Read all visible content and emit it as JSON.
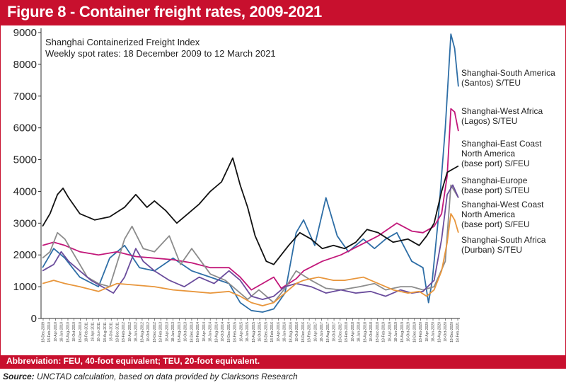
{
  "figure": {
    "title": "Figure 8 - Container freight rates, 2009-2021",
    "abbreviation": "Abbreviation: FEU, 40-foot equivalent; TEU, 20-foot equivalent.",
    "source_label": "Source:",
    "source_text": "UNCTAD calculation, based on data provided by Clarksons Research",
    "accent_color": "#c8102e"
  },
  "chart_data": {
    "type": "line",
    "subtitle_lines": [
      "Shanghai Containerized Freight Index",
      "Weekly spot rates: 18 December 2009 to 12 March 2021"
    ],
    "ylim": [
      0,
      9000
    ],
    "y_ticks": [
      0,
      1000,
      2000,
      3000,
      4000,
      5000,
      6000,
      7000,
      8000,
      9000
    ],
    "xlim": [
      2009.96,
      2021.19
    ],
    "grid": false,
    "x_tick_labels": [
      "18-Dec-2009",
      "18-Feb-2010",
      "18-Apr-2010",
      "18-Jun-2010",
      "18-Aug-2010",
      "18-Oct-2010",
      "18-Dec-2010",
      "18-Feb-2011",
      "18-Apr-2011",
      "18-Jun-2011",
      "18-Aug-2011",
      "18-Oct-2011",
      "18-Dec-2011",
      "18-Feb-2012",
      "18-Apr-2012",
      "18-Jun-2012",
      "18-Aug-2012",
      "18-Oct-2012",
      "18-Dec-2012",
      "18-Feb-2013",
      "18-Apr-2013",
      "18-Jun-2013",
      "18-Aug-2013",
      "18-Oct-2013",
      "18-Dec-2013",
      "18-Feb-2014",
      "18-Apr-2014",
      "18-Jun-2014",
      "18-Aug-2014",
      "18-Oct-2014",
      "18-Dec-2014",
      "18-Feb-2015",
      "18-Apr-2015",
      "18-Jun-2015",
      "18-Aug-2015",
      "18-Oct-2015",
      "18-Dec-2015",
      "18-Feb-2016",
      "18-Apr-2016",
      "18-Jun-2016",
      "18-Aug-2016",
      "18-Oct-2016",
      "18-Dec-2016",
      "18-Feb-2017",
      "18-Apr-2017",
      "18-Jun-2017",
      "18-Aug-2017",
      "18-Oct-2017",
      "18-Dec-2017",
      "18-Feb-2018",
      "18-Apr-2018",
      "18-Jun-2018",
      "18-Aug-2018",
      "18-Oct-2018",
      "18-Dec-2018",
      "18-Feb-2019",
      "18-Apr-2019",
      "18-Jun-2019",
      "18-Aug-2019",
      "18-Oct-2019",
      "18-Dec-2019",
      "18-Feb-2020",
      "18-Apr-2020",
      "18-Jun-2020",
      "18-Aug-2020",
      "18-Oct-2020",
      "18-Dec-2020",
      "18-Feb-2021"
    ],
    "series": [
      {
        "name": "Shanghai-South America (Santos) S/TEU",
        "label_lines": [
          "Shanghai-South America",
          "(Santos) S/TEU"
        ],
        "color": "#2e6ea6",
        "points": [
          [
            2010.0,
            1600
          ],
          [
            2010.3,
            2200
          ],
          [
            2010.6,
            1900
          ],
          [
            2011.0,
            1300
          ],
          [
            2011.5,
            1000
          ],
          [
            2011.8,
            1900
          ],
          [
            2012.2,
            2300
          ],
          [
            2012.6,
            1600
          ],
          [
            2013.0,
            1500
          ],
          [
            2013.5,
            1900
          ],
          [
            2014.0,
            1500
          ],
          [
            2014.5,
            1300
          ],
          [
            2015.0,
            1100
          ],
          [
            2015.3,
            500
          ],
          [
            2015.6,
            250
          ],
          [
            2015.9,
            200
          ],
          [
            2016.2,
            300
          ],
          [
            2016.5,
            800
          ],
          [
            2016.8,
            2700
          ],
          [
            2017.0,
            3100
          ],
          [
            2017.3,
            2300
          ],
          [
            2017.6,
            3800
          ],
          [
            2017.9,
            2600
          ],
          [
            2018.2,
            2100
          ],
          [
            2018.6,
            2500
          ],
          [
            2018.9,
            2200
          ],
          [
            2019.2,
            2500
          ],
          [
            2019.5,
            2700
          ],
          [
            2019.9,
            1800
          ],
          [
            2020.2,
            1600
          ],
          [
            2020.35,
            500
          ],
          [
            2020.45,
            1200
          ],
          [
            2020.6,
            3000
          ],
          [
            2020.8,
            6000
          ],
          [
            2020.95,
            8950
          ],
          [
            2021.05,
            8500
          ],
          [
            2021.15,
            7300
          ]
        ]
      },
      {
        "name": "Shanghai-West Africa (Lagos) S/TEU",
        "label_lines": [
          "Shanghai-West Africa",
          "(Lagos) S/TEU"
        ],
        "color": "#c2187a",
        "points": [
          [
            2010.0,
            2300
          ],
          [
            2010.3,
            2400
          ],
          [
            2010.6,
            2300
          ],
          [
            2011.0,
            2100
          ],
          [
            2011.5,
            2000
          ],
          [
            2012.0,
            2100
          ],
          [
            2012.5,
            1950
          ],
          [
            2013.0,
            1900
          ],
          [
            2013.5,
            1850
          ],
          [
            2014.0,
            1750
          ],
          [
            2014.5,
            1600
          ],
          [
            2015.0,
            1600
          ],
          [
            2015.3,
            1300
          ],
          [
            2015.6,
            900
          ],
          [
            2015.9,
            1100
          ],
          [
            2016.2,
            1300
          ],
          [
            2016.4,
            950
          ],
          [
            2016.8,
            1250
          ],
          [
            2017.0,
            1500
          ],
          [
            2017.5,
            1800
          ],
          [
            2018.0,
            2000
          ],
          [
            2018.5,
            2300
          ],
          [
            2019.0,
            2600
          ],
          [
            2019.5,
            3000
          ],
          [
            2019.9,
            2750
          ],
          [
            2020.2,
            2700
          ],
          [
            2020.5,
            2900
          ],
          [
            2020.7,
            3300
          ],
          [
            2020.85,
            4500
          ],
          [
            2020.95,
            6600
          ],
          [
            2021.05,
            6500
          ],
          [
            2021.15,
            5900
          ]
        ]
      },
      {
        "name": "Shanghai-East Coast North America (base port) S/FEU",
        "label_lines": [
          "Shanghai-East Coast",
          "North America",
          "(base port) S/FEU"
        ],
        "color": "#111111",
        "points": [
          [
            2010.0,
            2900
          ],
          [
            2010.2,
            3300
          ],
          [
            2010.4,
            3900
          ],
          [
            2010.55,
            4100
          ],
          [
            2010.7,
            3800
          ],
          [
            2011.0,
            3300
          ],
          [
            2011.4,
            3100
          ],
          [
            2011.8,
            3200
          ],
          [
            2012.2,
            3500
          ],
          [
            2012.5,
            3900
          ],
          [
            2012.8,
            3500
          ],
          [
            2013.0,
            3700
          ],
          [
            2013.3,
            3400
          ],
          [
            2013.6,
            3000
          ],
          [
            2013.9,
            3300
          ],
          [
            2014.2,
            3600
          ],
          [
            2014.5,
            4000
          ],
          [
            2014.8,
            4300
          ],
          [
            2015.0,
            4800
          ],
          [
            2015.1,
            5050
          ],
          [
            2015.3,
            4200
          ],
          [
            2015.5,
            3500
          ],
          [
            2015.7,
            2600
          ],
          [
            2016.0,
            1800
          ],
          [
            2016.2,
            1700
          ],
          [
            2016.4,
            2000
          ],
          [
            2016.6,
            2300
          ],
          [
            2016.9,
            2700
          ],
          [
            2017.2,
            2500
          ],
          [
            2017.5,
            2200
          ],
          [
            2017.8,
            2300
          ],
          [
            2018.1,
            2200
          ],
          [
            2018.4,
            2400
          ],
          [
            2018.7,
            2800
          ],
          [
            2019.0,
            2700
          ],
          [
            2019.4,
            2400
          ],
          [
            2019.8,
            2500
          ],
          [
            2020.1,
            2300
          ],
          [
            2020.3,
            2600
          ],
          [
            2020.5,
            3000
          ],
          [
            2020.7,
            4000
          ],
          [
            2020.85,
            4600
          ],
          [
            2021.0,
            4700
          ],
          [
            2021.15,
            4800
          ]
        ]
      },
      {
        "name": "Shanghai-Europe (base port) S/TEU",
        "label_lines": [
          "Shanghai-Europe",
          "(base port) S/TEU"
        ],
        "color": "#8c8c8c",
        "points": [
          [
            2010.0,
            1900
          ],
          [
            2010.2,
            2100
          ],
          [
            2010.4,
            2700
          ],
          [
            2010.6,
            2500
          ],
          [
            2010.9,
            1900
          ],
          [
            2011.2,
            1300
          ],
          [
            2011.5,
            1100
          ],
          [
            2011.8,
            1000
          ],
          [
            2012.2,
            2500
          ],
          [
            2012.4,
            2900
          ],
          [
            2012.7,
            2200
          ],
          [
            2013.0,
            2100
          ],
          [
            2013.4,
            2600
          ],
          [
            2013.7,
            1700
          ],
          [
            2014.0,
            2200
          ],
          [
            2014.5,
            1400
          ],
          [
            2014.9,
            1200
          ],
          [
            2015.2,
            900
          ],
          [
            2015.5,
            600
          ],
          [
            2015.8,
            900
          ],
          [
            2016.0,
            700
          ],
          [
            2016.2,
            500
          ],
          [
            2016.5,
            950
          ],
          [
            2016.8,
            1500
          ],
          [
            2017.2,
            1200
          ],
          [
            2017.6,
            950
          ],
          [
            2018.0,
            900
          ],
          [
            2018.5,
            1000
          ],
          [
            2018.9,
            1100
          ],
          [
            2019.2,
            900
          ],
          [
            2019.6,
            1000
          ],
          [
            2019.9,
            1000
          ],
          [
            2020.2,
            900
          ],
          [
            2020.5,
            1000
          ],
          [
            2020.8,
            1800
          ],
          [
            2020.95,
            4200
          ],
          [
            2021.05,
            4000
          ],
          [
            2021.15,
            3800
          ]
        ]
      },
      {
        "name": "Shanghai-West Coast North America (base port) S/FEU",
        "label_lines": [
          "Shanghai-West Coast",
          "North America",
          "(base port) S/FEU"
        ],
        "color": "#6a4c9c",
        "points": [
          [
            2010.0,
            1500
          ],
          [
            2010.3,
            1700
          ],
          [
            2010.5,
            2100
          ],
          [
            2010.7,
            1800
          ],
          [
            2011.0,
            1500
          ],
          [
            2011.3,
            1200
          ],
          [
            2011.6,
            1000
          ],
          [
            2011.9,
            800
          ],
          [
            2012.2,
            1300
          ],
          [
            2012.5,
            2200
          ],
          [
            2012.7,
            1800
          ],
          [
            2013.0,
            1500
          ],
          [
            2013.4,
            1200
          ],
          [
            2013.8,
            1000
          ],
          [
            2014.2,
            1300
          ],
          [
            2014.6,
            1100
          ],
          [
            2015.0,
            1500
          ],
          [
            2015.3,
            1200
          ],
          [
            2015.6,
            700
          ],
          [
            2015.9,
            600
          ],
          [
            2016.2,
            700
          ],
          [
            2016.5,
            1000
          ],
          [
            2016.8,
            1100
          ],
          [
            2017.2,
            1000
          ],
          [
            2017.6,
            800
          ],
          [
            2018.0,
            900
          ],
          [
            2018.4,
            800
          ],
          [
            2018.8,
            850
          ],
          [
            2019.2,
            700
          ],
          [
            2019.6,
            900
          ],
          [
            2019.9,
            800
          ],
          [
            2020.2,
            850
          ],
          [
            2020.5,
            1200
          ],
          [
            2020.7,
            2500
          ],
          [
            2020.85,
            3900
          ],
          [
            2021.0,
            4200
          ],
          [
            2021.15,
            3800
          ]
        ]
      },
      {
        "name": "Shanghai-South Africa (Durban) S/TEU",
        "label_lines": [
          "Shanghai-South Africa",
          "(Durban) S/TEU"
        ],
        "color": "#e8963c",
        "points": [
          [
            2010.0,
            1100
          ],
          [
            2010.3,
            1200
          ],
          [
            2010.6,
            1100
          ],
          [
            2011.0,
            1000
          ],
          [
            2011.5,
            850
          ],
          [
            2012.0,
            1100
          ],
          [
            2012.5,
            1050
          ],
          [
            2013.0,
            1000
          ],
          [
            2013.5,
            900
          ],
          [
            2014.0,
            850
          ],
          [
            2014.5,
            800
          ],
          [
            2015.0,
            850
          ],
          [
            2015.3,
            700
          ],
          [
            2015.6,
            500
          ],
          [
            2015.9,
            400
          ],
          [
            2016.2,
            500
          ],
          [
            2016.5,
            800
          ],
          [
            2016.8,
            1100
          ],
          [
            2017.0,
            1200
          ],
          [
            2017.4,
            1300
          ],
          [
            2017.8,
            1200
          ],
          [
            2018.1,
            1200
          ],
          [
            2018.6,
            1300
          ],
          [
            2019.0,
            1100
          ],
          [
            2019.4,
            900
          ],
          [
            2019.8,
            800
          ],
          [
            2020.1,
            850
          ],
          [
            2020.3,
            700
          ],
          [
            2020.5,
            900
          ],
          [
            2020.7,
            1500
          ],
          [
            2020.85,
            2400
          ],
          [
            2020.95,
            3300
          ],
          [
            2021.05,
            3100
          ],
          [
            2021.15,
            2700
          ]
        ]
      }
    ]
  }
}
